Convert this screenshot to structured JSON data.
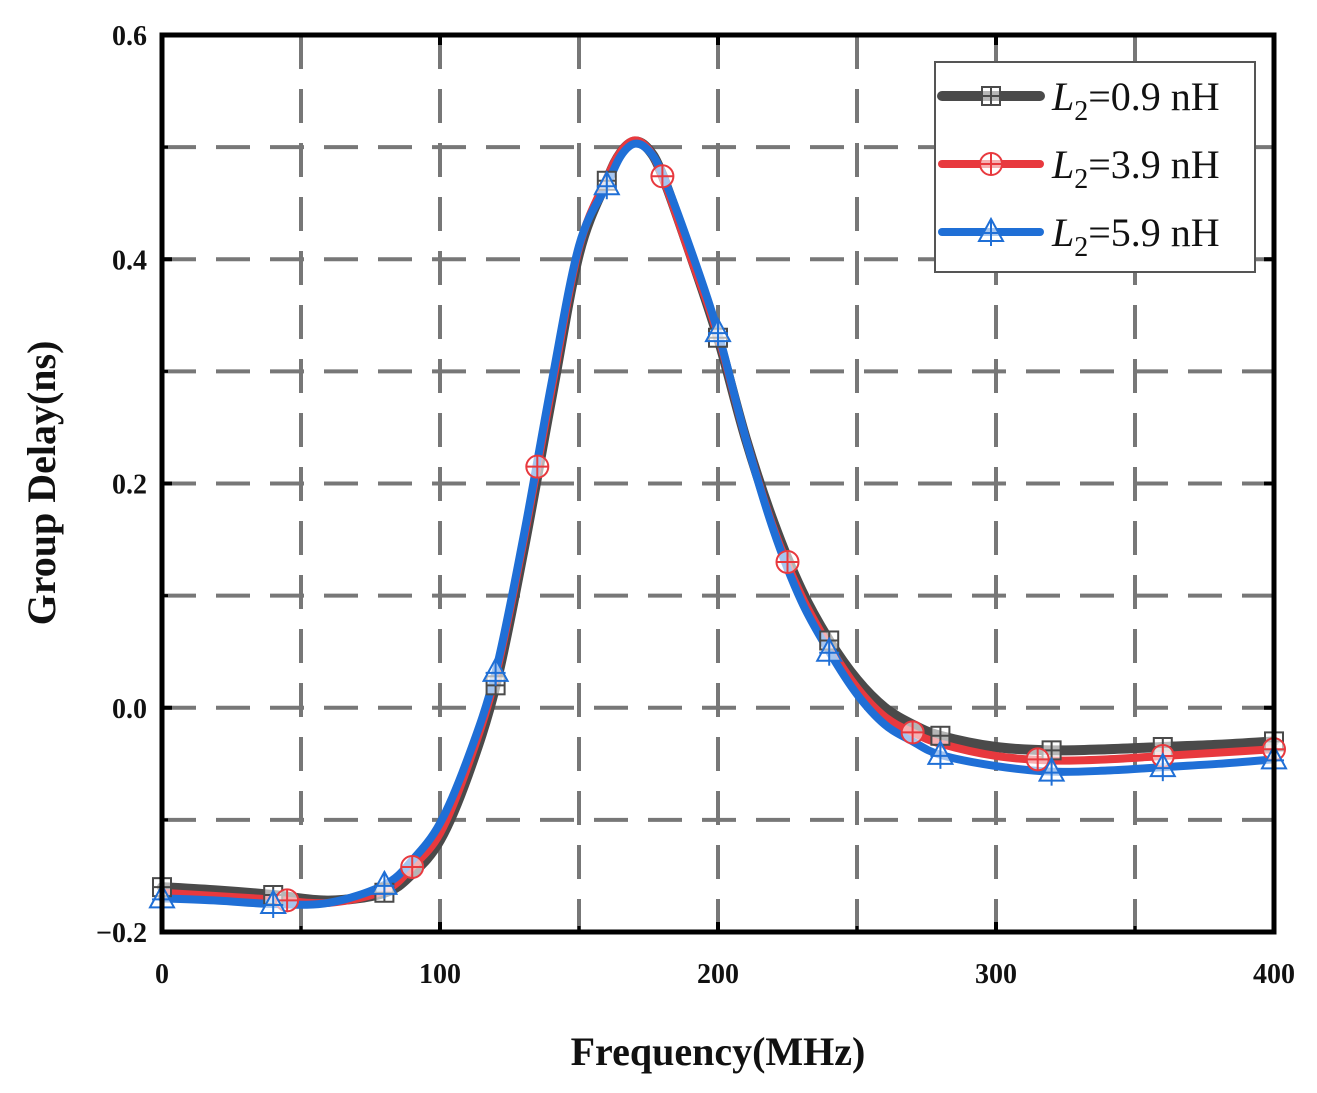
{
  "chart_data": {
    "type": "line",
    "title": "",
    "xlabel": "Frequency(MHz)",
    "ylabel": "Group Delay(ns)",
    "xlim": [
      0,
      400
    ],
    "ylim": [
      -0.2,
      0.6
    ],
    "xticks": [
      0,
      100,
      200,
      300,
      400
    ],
    "xtick_labels": [
      "0",
      "100",
      "200",
      "300",
      "400"
    ],
    "yticks": [
      -0.2,
      0.0,
      0.2,
      0.4,
      0.6
    ],
    "ytick_labels": [
      "−0.2",
      "0.0",
      "0.2",
      "0.4",
      "0.6"
    ],
    "grid": true,
    "legend_position": "top-right",
    "series": [
      {
        "name": "L2=0.9 nH",
        "legend_var": "L",
        "legend_sub": "2",
        "legend_rest": "=0.9 nH",
        "color": "#4a4a4a",
        "marker": "square-plus",
        "x": [
          0,
          20,
          40,
          60,
          80,
          90,
          100,
          110,
          120,
          130,
          140,
          150,
          160,
          165,
          170,
          175,
          180,
          190,
          200,
          210,
          220,
          230,
          240,
          250,
          260,
          270,
          280,
          300,
          320,
          340,
          360,
          380,
          400
        ],
        "y": [
          -0.16,
          -0.163,
          -0.167,
          -0.172,
          -0.165,
          -0.148,
          -0.118,
          -0.06,
          0.02,
          0.14,
          0.275,
          0.405,
          0.47,
          0.495,
          0.505,
          0.498,
          0.475,
          0.405,
          0.33,
          0.24,
          0.165,
          0.105,
          0.06,
          0.025,
          0.0,
          -0.015,
          -0.025,
          -0.035,
          -0.038,
          -0.037,
          -0.035,
          -0.033,
          -0.03
        ],
        "marker_x": [
          0,
          40,
          80,
          120,
          160,
          200,
          240,
          280,
          320,
          360,
          400
        ]
      },
      {
        "name": "L2=3.9 nH",
        "legend_var": "L",
        "legend_sub": "2",
        "legend_rest": "=3.9 nH",
        "color": "#e8393e",
        "marker": "circle-plus",
        "x": [
          0,
          20,
          40,
          60,
          80,
          90,
          100,
          110,
          120,
          130,
          140,
          150,
          160,
          165,
          170,
          175,
          180,
          190,
          200,
          210,
          220,
          230,
          240,
          250,
          260,
          270,
          280,
          300,
          320,
          340,
          360,
          380,
          400
        ],
        "y": [
          -0.165,
          -0.168,
          -0.171,
          -0.174,
          -0.163,
          -0.142,
          -0.112,
          -0.052,
          0.028,
          0.148,
          0.282,
          0.41,
          0.472,
          0.496,
          0.506,
          0.498,
          0.474,
          0.403,
          0.332,
          0.24,
          0.16,
          0.1,
          0.055,
          0.018,
          -0.008,
          -0.022,
          -0.032,
          -0.043,
          -0.047,
          -0.046,
          -0.043,
          -0.04,
          -0.037
        ],
        "marker_x": [
          45,
          90,
          135,
          180,
          225,
          270,
          315,
          360,
          400
        ]
      },
      {
        "name": "L2=5.9 nH",
        "legend_var": "L",
        "legend_sub": "2",
        "legend_rest": "=5.9 nH",
        "color": "#1f6fd6",
        "marker": "triangle-plus",
        "x": [
          0,
          20,
          40,
          60,
          80,
          90,
          100,
          110,
          120,
          130,
          140,
          150,
          160,
          165,
          170,
          175,
          180,
          190,
          200,
          210,
          220,
          230,
          240,
          250,
          260,
          270,
          280,
          300,
          320,
          340,
          360,
          380,
          400
        ],
        "y": [
          -0.17,
          -0.172,
          -0.175,
          -0.174,
          -0.158,
          -0.136,
          -0.103,
          -0.045,
          0.032,
          0.152,
          0.288,
          0.412,
          0.466,
          0.492,
          0.503,
          0.497,
          0.476,
          0.41,
          0.335,
          0.24,
          0.158,
          0.095,
          0.05,
          0.012,
          -0.015,
          -0.03,
          -0.042,
          -0.052,
          -0.057,
          -0.056,
          -0.053,
          -0.05,
          -0.046
        ],
        "marker_x": [
          0,
          40,
          80,
          120,
          160,
          200,
          240,
          280,
          320,
          360,
          400
        ]
      }
    ]
  }
}
